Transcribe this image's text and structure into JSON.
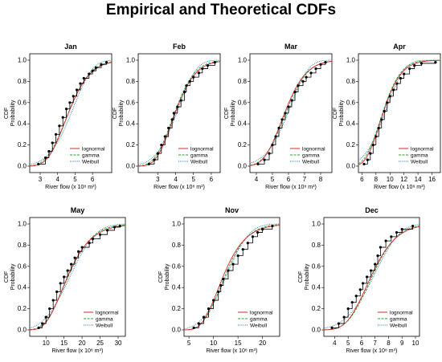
{
  "figure": {
    "title": "Empirical and Theoretical CDFs"
  },
  "colors": {
    "lognormal": "#d62728",
    "gamma": "#2ca02c",
    "weibull": "#1f77b4",
    "empirical": "#000000"
  },
  "legend": [
    "lognormal",
    "gamma",
    "Weibull"
  ],
  "chart_data": [
    {
      "type": "line",
      "title": "Jan",
      "xlabel": "River flow (x 10⁸ m³)",
      "ylabel": "CDF\nProbability",
      "xlim": [
        2.4,
        7.1
      ],
      "ylim": [
        0,
        1
      ],
      "xticks": [
        3,
        4,
        5,
        6
      ],
      "yticks": [
        0.0,
        0.2,
        0.4,
        0.6,
        0.8,
        1.0
      ],
      "lognormal": {
        "meanlog": 1.53,
        "sdlog": 0.21
      },
      "gamma": {
        "shape": 22,
        "rate": 4.7
      },
      "weibull": {
        "shape": 5.6,
        "scale": 5.1
      },
      "empirical": [
        [
          2.9,
          0.02
        ],
        [
          3.3,
          0.08
        ],
        [
          3.5,
          0.14
        ],
        [
          3.7,
          0.22
        ],
        [
          3.9,
          0.3
        ],
        [
          4.1,
          0.38
        ],
        [
          4.3,
          0.46
        ],
        [
          4.5,
          0.54
        ],
        [
          4.7,
          0.6
        ],
        [
          4.9,
          0.66
        ],
        [
          5.1,
          0.72
        ],
        [
          5.3,
          0.78
        ],
        [
          5.5,
          0.83
        ],
        [
          5.8,
          0.87
        ],
        [
          6.0,
          0.9
        ],
        [
          6.2,
          0.93
        ],
        [
          6.5,
          0.96
        ],
        [
          6.8,
          0.98
        ]
      ]
    },
    {
      "type": "line",
      "title": "Feb",
      "xlabel": "River flow (x 10⁸ m³)",
      "ylabel": "CDF\nProbability",
      "xlim": [
        1.9,
        6.5
      ],
      "ylim": [
        0,
        1
      ],
      "xticks": [
        3,
        4,
        5,
        6
      ],
      "yticks": [
        0.0,
        0.2,
        0.4,
        0.6,
        0.8,
        1.0
      ],
      "lognormal": {
        "meanlog": 1.38,
        "sdlog": 0.22
      },
      "gamma": {
        "shape": 20,
        "rate": 5.0
      },
      "weibull": {
        "shape": 5.2,
        "scale": 4.35
      },
      "empirical": [
        [
          2.5,
          0.02
        ],
        [
          2.8,
          0.06
        ],
        [
          3.0,
          0.12
        ],
        [
          3.2,
          0.2
        ],
        [
          3.4,
          0.28
        ],
        [
          3.6,
          0.36
        ],
        [
          3.8,
          0.44
        ],
        [
          3.9,
          0.5
        ],
        [
          4.1,
          0.56
        ],
        [
          4.3,
          0.62
        ],
        [
          4.5,
          0.7
        ],
        [
          4.6,
          0.76
        ],
        [
          4.8,
          0.8
        ],
        [
          5.0,
          0.84
        ],
        [
          5.3,
          0.88
        ],
        [
          5.5,
          0.92
        ],
        [
          5.8,
          0.95
        ],
        [
          6.2,
          0.98
        ]
      ]
    },
    {
      "type": "line",
      "title": "Mar",
      "xlabel": "River flow (x 10⁸ m³)",
      "ylabel": "CDF\nProbability",
      "xlim": [
        3.6,
        8.7
      ],
      "ylim": [
        0,
        1
      ],
      "xticks": [
        4,
        5,
        6,
        7,
        8
      ],
      "yticks": [
        0.0,
        0.2,
        0.4,
        0.6,
        0.8,
        1.0
      ],
      "lognormal": {
        "meanlog": 1.75,
        "sdlog": 0.18
      },
      "gamma": {
        "shape": 30,
        "rate": 5.1
      },
      "weibull": {
        "shape": 6.5,
        "scale": 6.3
      },
      "empirical": [
        [
          4.1,
          0.02
        ],
        [
          4.5,
          0.06
        ],
        [
          4.8,
          0.12
        ],
        [
          5.0,
          0.2
        ],
        [
          5.2,
          0.28
        ],
        [
          5.4,
          0.36
        ],
        [
          5.6,
          0.44
        ],
        [
          5.8,
          0.5
        ],
        [
          6.0,
          0.56
        ],
        [
          6.2,
          0.62
        ],
        [
          6.4,
          0.7
        ],
        [
          6.6,
          0.76
        ],
        [
          6.9,
          0.8
        ],
        [
          7.1,
          0.84
        ],
        [
          7.4,
          0.88
        ],
        [
          7.7,
          0.92
        ],
        [
          8.0,
          0.96
        ],
        [
          8.3,
          0.98
        ]
      ]
    },
    {
      "type": "line",
      "title": "Apr",
      "xlabel": "River flow (x 10⁸ m³)",
      "ylabel": "CDF\nProbability",
      "xlim": [
        5.5,
        17.2
      ],
      "ylim": [
        0,
        1
      ],
      "xticks": [
        6,
        8,
        10,
        12,
        14,
        16
      ],
      "yticks": [
        0.0,
        0.2,
        0.4,
        0.6,
        0.8,
        1.0
      ],
      "lognormal": {
        "meanlog": 2.2,
        "sdlog": 0.22
      },
      "gamma": {
        "shape": 20,
        "rate": 2.2
      },
      "weibull": {
        "shape": 4.8,
        "scale": 10.0
      },
      "empirical": [
        [
          6.3,
          0.02
        ],
        [
          6.8,
          0.06
        ],
        [
          7.2,
          0.12
        ],
        [
          7.6,
          0.2
        ],
        [
          8.0,
          0.28
        ],
        [
          8.4,
          0.36
        ],
        [
          8.8,
          0.44
        ],
        [
          9.2,
          0.52
        ],
        [
          9.6,
          0.6
        ],
        [
          10.0,
          0.66
        ],
        [
          10.5,
          0.72
        ],
        [
          11.0,
          0.78
        ],
        [
          11.5,
          0.83
        ],
        [
          12.0,
          0.87
        ],
        [
          12.8,
          0.92
        ],
        [
          13.5,
          0.95
        ],
        [
          14.5,
          0.97
        ],
        [
          16.5,
          0.98
        ]
      ]
    },
    {
      "type": "line",
      "title": "May",
      "xlabel": "River flow (x 10⁸ m³)",
      "ylabel": "CDF\nProbability",
      "xlim": [
        5.5,
        32
      ],
      "ylim": [
        0,
        1
      ],
      "xticks": [
        10,
        15,
        20,
        25,
        30
      ],
      "yticks": [
        0.0,
        0.2,
        0.4,
        0.6,
        0.8,
        1.0
      ],
      "lognormal": {
        "meanlog": 2.77,
        "sdlog": 0.32
      },
      "gamma": {
        "shape": 10,
        "rate": 0.6
      },
      "weibull": {
        "shape": 3.4,
        "scale": 18.5
      },
      "empirical": [
        [
          8,
          0.02
        ],
        [
          9,
          0.06
        ],
        [
          10,
          0.12
        ],
        [
          11,
          0.2
        ],
        [
          12,
          0.28
        ],
        [
          13,
          0.36
        ],
        [
          14,
          0.44
        ],
        [
          15,
          0.5
        ],
        [
          16,
          0.56
        ],
        [
          17,
          0.62
        ],
        [
          18,
          0.68
        ],
        [
          19,
          0.74
        ],
        [
          20,
          0.78
        ],
        [
          22,
          0.82
        ],
        [
          23,
          0.86
        ],
        [
          25,
          0.9
        ],
        [
          27,
          0.94
        ],
        [
          29,
          0.97
        ],
        [
          30.5,
          0.98
        ]
      ]
    },
    {
      "type": "line",
      "title": "Nov",
      "xlabel": "River flow (x 10⁸ m³)",
      "ylabel": "CDF\nProbability",
      "xlim": [
        4,
        23.5
      ],
      "ylim": [
        0,
        1
      ],
      "xticks": [
        5,
        10,
        15,
        20
      ],
      "yticks": [
        0.0,
        0.2,
        0.4,
        0.6,
        0.8,
        1.0
      ],
      "lognormal": {
        "meanlog": 2.48,
        "sdlog": 0.3
      },
      "gamma": {
        "shape": 12,
        "rate": 0.95
      },
      "weibull": {
        "shape": 3.8,
        "scale": 13.8
      },
      "empirical": [
        [
          6,
          0.02
        ],
        [
          7,
          0.06
        ],
        [
          8,
          0.12
        ],
        [
          9,
          0.2
        ],
        [
          10,
          0.28
        ],
        [
          11,
          0.36
        ],
        [
          11.5,
          0.42
        ],
        [
          12,
          0.48
        ],
        [
          13,
          0.56
        ],
        [
          14,
          0.62
        ],
        [
          15,
          0.7
        ],
        [
          16,
          0.76
        ],
        [
          17,
          0.82
        ],
        [
          18,
          0.88
        ],
        [
          19,
          0.92
        ],
        [
          20,
          0.95
        ],
        [
          22,
          0.98
        ]
      ]
    },
    {
      "type": "line",
      "title": "Dec",
      "xlabel": "River flow (x 10⁸ m³)",
      "ylabel": "CDF\nProbability",
      "xlim": [
        3.2,
        10.3
      ],
      "ylim": [
        0,
        1
      ],
      "xticks": [
        4,
        5,
        6,
        7,
        8,
        9,
        10
      ],
      "yticks": [
        0.0,
        0.2,
        0.4,
        0.6,
        0.8,
        1.0
      ],
      "lognormal": {
        "meanlog": 1.9,
        "sdlog": 0.22
      },
      "gamma": {
        "shape": 22,
        "rate": 3.2
      },
      "weibull": {
        "shape": 5.0,
        "scale": 7.4
      },
      "empirical": [
        [
          3.8,
          0.02
        ],
        [
          4.3,
          0.06
        ],
        [
          4.7,
          0.12
        ],
        [
          5.0,
          0.2
        ],
        [
          5.3,
          0.26
        ],
        [
          5.6,
          0.32
        ],
        [
          5.9,
          0.38
        ],
        [
          6.1,
          0.44
        ],
        [
          6.4,
          0.5
        ],
        [
          6.7,
          0.56
        ],
        [
          7.0,
          0.62
        ],
        [
          7.2,
          0.7
        ],
        [
          7.4,
          0.78
        ],
        [
          7.8,
          0.84
        ],
        [
          8.2,
          0.88
        ],
        [
          8.6,
          0.92
        ],
        [
          9.0,
          0.95
        ],
        [
          9.8,
          0.98
        ]
      ]
    }
  ]
}
